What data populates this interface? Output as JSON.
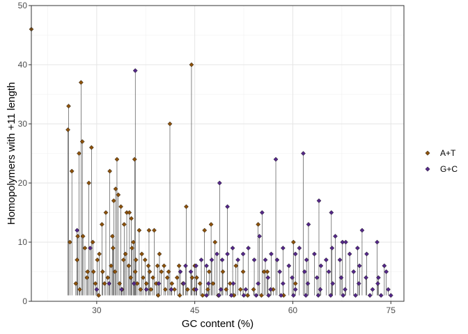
{
  "chart_data": {
    "type": "scatter",
    "xlabel": "GC content (%)",
    "ylabel": "Homopolymers with +11 length",
    "xlim": [
      20,
      77
    ],
    "ylim": [
      0,
      50
    ],
    "xticks": [
      30,
      45,
      60,
      75
    ],
    "yticks": [
      0,
      10,
      20,
      30,
      40,
      50
    ],
    "grid": true,
    "legend_position": "right",
    "series": [
      {
        "name": "A+T",
        "color": "#8c510a",
        "points": [
          [
            20,
            46
          ],
          [
            25.7,
            33
          ],
          [
            25.6,
            29
          ],
          [
            26.2,
            22
          ],
          [
            25.9,
            10
          ],
          [
            27.6,
            37
          ],
          [
            27.8,
            27
          ],
          [
            27.3,
            25
          ],
          [
            28.8,
            20
          ],
          [
            29.2,
            26
          ],
          [
            27.1,
            11
          ],
          [
            27.9,
            11
          ],
          [
            28.2,
            9
          ],
          [
            27.0,
            7
          ],
          [
            28.6,
            5
          ],
          [
            29.5,
            5
          ],
          [
            29.4,
            10
          ],
          [
            30.4,
            8
          ],
          [
            30.8,
            13
          ],
          [
            31.4,
            15
          ],
          [
            32.0,
            22
          ],
          [
            32.4,
            11
          ],
          [
            32.6,
            17
          ],
          [
            32.9,
            19
          ],
          [
            33.1,
            24
          ],
          [
            33.3,
            18
          ],
          [
            33.7,
            16
          ],
          [
            34.2,
            13
          ],
          [
            34.6,
            15
          ],
          [
            35.0,
            15
          ],
          [
            35.3,
            14
          ],
          [
            35.6,
            10
          ],
          [
            35.8,
            24
          ],
          [
            36.5,
            12
          ],
          [
            36.9,
            8
          ],
          [
            37.4,
            7
          ],
          [
            38.0,
            12
          ],
          [
            38.8,
            12
          ],
          [
            39.6,
            8
          ],
          [
            40.3,
            6
          ],
          [
            41.2,
            30
          ],
          [
            43.7,
            16
          ],
          [
            44.5,
            40
          ],
          [
            44.6,
            4
          ],
          [
            45.3,
            4
          ],
          [
            46.5,
            12
          ],
          [
            47.5,
            13
          ],
          [
            48.1,
            10
          ],
          [
            49.3,
            5
          ],
          [
            51.3,
            6
          ],
          [
            52.4,
            5
          ],
          [
            54.7,
            13
          ],
          [
            55.6,
            5
          ],
          [
            56.1,
            5
          ],
          [
            60.1,
            10
          ],
          [
            60.4,
            3
          ],
          [
            26.8,
            3
          ],
          [
            27.4,
            2
          ],
          [
            28.5,
            4
          ],
          [
            29.8,
            3
          ],
          [
            30.3,
            1
          ],
          [
            30.9,
            5
          ],
          [
            31.2,
            3
          ],
          [
            31.7,
            4
          ],
          [
            32.2,
            6
          ],
          [
            32.8,
            5
          ],
          [
            33.5,
            3
          ],
          [
            33.9,
            2
          ],
          [
            34.4,
            8
          ],
          [
            34.9,
            6
          ],
          [
            35.2,
            4
          ],
          [
            35.4,
            9
          ],
          [
            35.9,
            5
          ],
          [
            36.2,
            3
          ],
          [
            36.7,
            2
          ],
          [
            37.1,
            4
          ],
          [
            37.6,
            3
          ],
          [
            37.9,
            6
          ],
          [
            38.3,
            2
          ],
          [
            38.6,
            4
          ],
          [
            39.1,
            3
          ],
          [
            39.4,
            1
          ],
          [
            39.9,
            5
          ],
          [
            40.5,
            2
          ],
          [
            40.8,
            4
          ],
          [
            41.5,
            3
          ],
          [
            41.9,
            2
          ],
          [
            42.3,
            4
          ],
          [
            42.7,
            1
          ],
          [
            43.2,
            3
          ],
          [
            43.9,
            2
          ],
          [
            44.9,
            2
          ],
          [
            45.8,
            3
          ],
          [
            46.2,
            1
          ],
          [
            47.0,
            2
          ],
          [
            47.8,
            3
          ],
          [
            48.6,
            1
          ],
          [
            49.8,
            2
          ],
          [
            50.4,
            3
          ],
          [
            51.0,
            1
          ],
          [
            52.0,
            2
          ],
          [
            53.1,
            1
          ],
          [
            54.0,
            2
          ],
          [
            55.2,
            1
          ],
          [
            57.0,
            2
          ],
          [
            58.6,
            1
          ],
          [
            30.1,
            7
          ],
          [
            32.5,
            9
          ],
          [
            34.1,
            7
          ],
          [
            36.0,
            7
          ],
          [
            38.1,
            5
          ],
          [
            39.3,
            6
          ],
          [
            41.0,
            5
          ],
          [
            42.6,
            6
          ],
          [
            45.0,
            6
          ],
          [
            47.2,
            5
          ]
        ]
      },
      {
        "name": "G+C",
        "color": "#542788",
        "points": [
          [
            27.0,
            12
          ],
          [
            29.0,
            9
          ],
          [
            35.9,
            39
          ],
          [
            48.8,
            20
          ],
          [
            50.0,
            16
          ],
          [
            55.3,
            15
          ],
          [
            57.4,
            24
          ],
          [
            61.6,
            25
          ],
          [
            62.4,
            13
          ],
          [
            64.0,
            17
          ],
          [
            65.9,
            15
          ],
          [
            66.5,
            11
          ],
          [
            67.6,
            10
          ],
          [
            68.1,
            10
          ],
          [
            69.9,
            9
          ],
          [
            70.6,
            12
          ],
          [
            72.9,
            10
          ],
          [
            74.0,
            6
          ],
          [
            74.3,
            5
          ],
          [
            73.1,
            4
          ],
          [
            71.3,
            8
          ],
          [
            70.2,
            6
          ],
          [
            68.7,
            8
          ],
          [
            67.2,
            7
          ],
          [
            66.0,
            9
          ],
          [
            65.1,
            7
          ],
          [
            64.3,
            6
          ],
          [
            63.3,
            8
          ],
          [
            62.1,
            7
          ],
          [
            61.0,
            9
          ],
          [
            60.4,
            8
          ],
          [
            59.4,
            6
          ],
          [
            58.5,
            9
          ],
          [
            57.6,
            7
          ],
          [
            56.7,
            8
          ],
          [
            55.8,
            7
          ],
          [
            54.9,
            11
          ],
          [
            54.1,
            7
          ],
          [
            53.2,
            9
          ],
          [
            52.4,
            8
          ],
          [
            51.6,
            7
          ],
          [
            50.8,
            9
          ],
          [
            50.0,
            8
          ],
          [
            49.2,
            7
          ],
          [
            48.4,
            8
          ],
          [
            47.6,
            7
          ],
          [
            46.8,
            6
          ],
          [
            46.0,
            7
          ],
          [
            45.2,
            6
          ],
          [
            44.4,
            5
          ],
          [
            43.6,
            6
          ],
          [
            42.8,
            5
          ],
          [
            56.2,
            4
          ],
          [
            58.0,
            5
          ],
          [
            59.9,
            4
          ],
          [
            61.8,
            5
          ],
          [
            63.7,
            4
          ],
          [
            65.5,
            5
          ],
          [
            67.4,
            4
          ],
          [
            69.3,
            5
          ],
          [
            71.2,
            4
          ],
          [
            73.0,
            3
          ],
          [
            74.6,
            2
          ],
          [
            72.2,
            2
          ],
          [
            70.1,
            3
          ],
          [
            68.0,
            2
          ],
          [
            66.1,
            3
          ],
          [
            64.2,
            2
          ],
          [
            62.3,
            3
          ],
          [
            60.4,
            2
          ],
          [
            58.5,
            3
          ],
          [
            56.6,
            2
          ],
          [
            54.7,
            3
          ],
          [
            52.8,
            2
          ],
          [
            50.9,
            3
          ],
          [
            49.0,
            2
          ],
          [
            47.1,
            3
          ],
          [
            45.2,
            2
          ],
          [
            43.3,
            3
          ],
          [
            41.4,
            2
          ],
          [
            39.5,
            3
          ],
          [
            37.6,
            2
          ],
          [
            35.7,
            3
          ],
          [
            33.8,
            2
          ],
          [
            31.9,
            3
          ],
          [
            30.0,
            2
          ],
          [
            75.0,
            1
          ],
          [
            73.5,
            1
          ],
          [
            71.8,
            1
          ],
          [
            69.6,
            1
          ],
          [
            67.7,
            1
          ],
          [
            65.8,
            1
          ],
          [
            63.9,
            1
          ],
          [
            62.0,
            1
          ],
          [
            60.1,
            1
          ],
          [
            58.2,
            1
          ],
          [
            56.3,
            1
          ],
          [
            54.4,
            1
          ],
          [
            52.5,
            1
          ],
          [
            50.6,
            1
          ],
          [
            48.7,
            1
          ],
          [
            46.8,
            1
          ]
        ]
      }
    ]
  }
}
